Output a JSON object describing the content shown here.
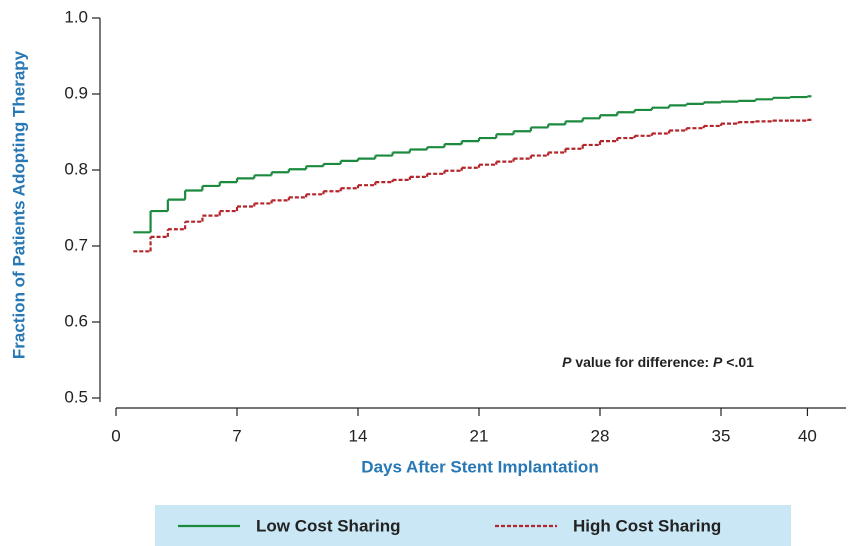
{
  "chart_data": {
    "type": "step",
    "x_label": "Days After Stent Implantation",
    "y_label": "Fraction of Patients Adopting Therapy",
    "annotation": [
      "P",
      " value for difference: ",
      "P",
      " <.01"
    ],
    "xlim": [
      0,
      42
    ],
    "xticks": [
      0,
      7,
      14,
      21,
      28,
      35,
      40
    ],
    "ylim": [
      0.5,
      1.0
    ],
    "yticks": [
      0.5,
      0.6,
      0.7,
      0.8,
      0.9,
      {
        "value": 1.0,
        "label": "1.0"
      }
    ],
    "legend_background": "#c9e7f5",
    "x": [
      1,
      2,
      3,
      4,
      5,
      6,
      7,
      8,
      9,
      10,
      11,
      12,
      13,
      14,
      15,
      16,
      17,
      18,
      19,
      20,
      21,
      22,
      23,
      24,
      25,
      26,
      27,
      28,
      29,
      30,
      31,
      32,
      33,
      34,
      35,
      36,
      37,
      38,
      39,
      40
    ],
    "series": [
      {
        "name": "Low Cost Sharing",
        "color": "#1b8a3e",
        "dash": false,
        "values": [
          0.718,
          0.746,
          0.761,
          0.773,
          0.779,
          0.784,
          0.789,
          0.793,
          0.797,
          0.801,
          0.805,
          0.808,
          0.812,
          0.815,
          0.819,
          0.823,
          0.827,
          0.83,
          0.834,
          0.838,
          0.842,
          0.847,
          0.851,
          0.856,
          0.86,
          0.864,
          0.868,
          0.872,
          0.876,
          0.879,
          0.882,
          0.885,
          0.887,
          0.889,
          0.89,
          0.891,
          0.893,
          0.895,
          0.896,
          0.897
        ]
      },
      {
        "name": "High Cost Sharing",
        "color": "#b3262b",
        "dash": true,
        "values": [
          0.693,
          0.712,
          0.722,
          0.732,
          0.74,
          0.746,
          0.752,
          0.756,
          0.76,
          0.764,
          0.768,
          0.772,
          0.776,
          0.78,
          0.784,
          0.787,
          0.791,
          0.795,
          0.799,
          0.803,
          0.807,
          0.811,
          0.815,
          0.819,
          0.823,
          0.828,
          0.833,
          0.838,
          0.842,
          0.845,
          0.848,
          0.852,
          0.855,
          0.858,
          0.861,
          0.863,
          0.864,
          0.865,
          0.865,
          0.866
        ]
      }
    ]
  }
}
